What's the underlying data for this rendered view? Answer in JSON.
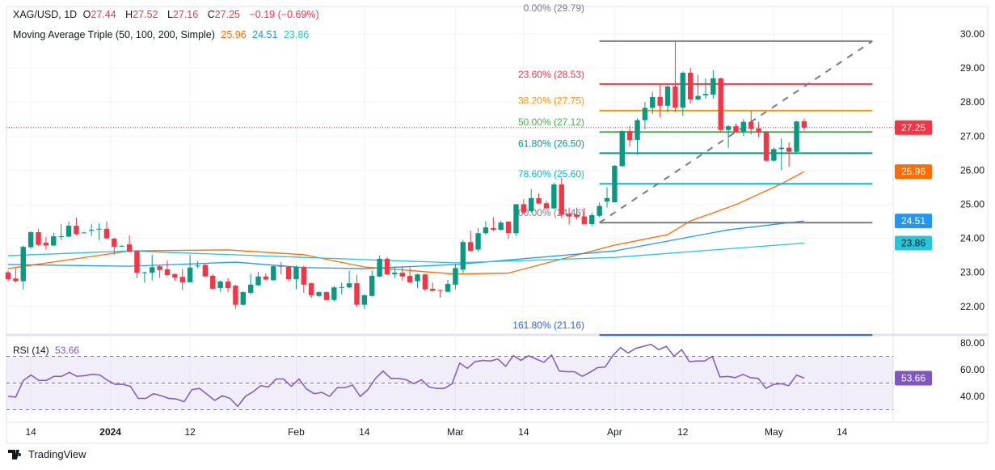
{
  "header": {
    "symbol": "XAG/USD, 1D",
    "open_label": "O",
    "open": "27.44",
    "high_label": "H",
    "high": "27.52",
    "low_label": "L",
    "low": "27.16",
    "close_label": "C",
    "close": "27.25",
    "change": "−0.19 (−0.69%)",
    "ma_title": "Moving Average Triple (50, 100, 200, Simple)",
    "ma50": "25.96",
    "ma100": "24.51",
    "ma200": "23.86"
  },
  "rsi_header": {
    "title": "RSI (14)",
    "value": "53.66"
  },
  "brand": {
    "name": "TradingView"
  },
  "colors": {
    "up": "#089981",
    "down": "#f23645",
    "ma50": "#ff6d00",
    "ma100": "#2196f3",
    "ma200": "#26c6da",
    "rsi": "#7e57c2"
  },
  "chart_data": [
    {
      "type": "candlestick",
      "title": "XAG/USD, 1D",
      "ylim": [
        21,
        30.3
      ],
      "y_ticks": [
        "22.00",
        "23.00",
        "24.00",
        "25.00",
        "26.00",
        "27.00",
        "28.00",
        "29.00",
        "30.00"
      ],
      "x_ticks": [
        {
          "label": "14",
          "index": 3
        },
        {
          "label": "2024",
          "index": 13.5
        },
        {
          "label": "12",
          "index": 24
        },
        {
          "label": "Feb",
          "index": 38
        },
        {
          "label": "14",
          "index": 47
        },
        {
          "label": "Mar",
          "index": 59
        },
        {
          "label": "14",
          "index": 68
        },
        {
          "label": "Apr",
          "index": 80
        },
        {
          "label": "12",
          "index": 89
        },
        {
          "label": "May",
          "index": 101
        },
        {
          "label": "14",
          "index": 110
        }
      ],
      "ohlc": [
        [
          23.0,
          23.05,
          22.75,
          22.8
        ],
        [
          22.82,
          23.12,
          22.7,
          22.74
        ],
        [
          22.74,
          23.79,
          22.5,
          23.75
        ],
        [
          23.74,
          24.2,
          23.7,
          24.18
        ],
        [
          24.18,
          24.28,
          23.77,
          23.81
        ],
        [
          23.87,
          24.04,
          23.67,
          23.79
        ],
        [
          23.79,
          24.16,
          23.77,
          24.06
        ],
        [
          24.05,
          24.42,
          23.95,
          24.06
        ],
        [
          24.05,
          24.49,
          24.03,
          24.37
        ],
        [
          24.37,
          24.61,
          24.09,
          24.12
        ],
        [
          24.17,
          24.19,
          24.15,
          24.17
        ],
        [
          24.22,
          24.42,
          24.07,
          24.25
        ],
        [
          24.26,
          24.44,
          23.95,
          24.28
        ],
        [
          24.28,
          24.49,
          23.98,
          24.0
        ],
        [
          23.99,
          24.02,
          23.52,
          23.75
        ],
        [
          23.77,
          23.8,
          23.75,
          23.78
        ],
        [
          23.82,
          24.09,
          23.6,
          23.61
        ],
        [
          23.63,
          23.65,
          22.83,
          22.99
        ],
        [
          23.0,
          23.02,
          22.7,
          23.0
        ],
        [
          22.99,
          23.52,
          22.76,
          23.15
        ],
        [
          23.18,
          23.2,
          22.84,
          23.07
        ],
        [
          23.09,
          23.35,
          22.9,
          22.92
        ],
        [
          22.95,
          22.97,
          22.75,
          22.85
        ],
        [
          22.87,
          23.1,
          22.48,
          22.71
        ],
        [
          22.71,
          23.52,
          22.7,
          23.14
        ],
        [
          23.19,
          23.33,
          23.12,
          23.2
        ],
        [
          23.22,
          23.25,
          22.86,
          22.88
        ],
        [
          22.9,
          22.95,
          22.5,
          22.52
        ],
        [
          22.54,
          22.76,
          22.43,
          22.73
        ],
        [
          22.73,
          22.83,
          22.42,
          22.54
        ],
        [
          22.61,
          22.63,
          21.93,
          22.05
        ],
        [
          22.05,
          22.45,
          22.03,
          22.42
        ],
        [
          22.4,
          22.95,
          22.35,
          22.64
        ],
        [
          22.62,
          23.02,
          22.6,
          22.88
        ],
        [
          22.88,
          22.97,
          22.76,
          22.79
        ],
        [
          22.77,
          23.2,
          22.75,
          23.18
        ],
        [
          23.19,
          23.3,
          22.94,
          23.17
        ],
        [
          23.16,
          23.18,
          22.75,
          22.8
        ],
        [
          22.8,
          23.2,
          22.5,
          23.16
        ],
        [
          23.16,
          23.2,
          22.4,
          22.64
        ],
        [
          22.68,
          22.7,
          22.25,
          22.33
        ],
        [
          22.31,
          22.44,
          22.28,
          22.42
        ],
        [
          22.42,
          22.44,
          22.17,
          22.19
        ],
        [
          22.19,
          22.6,
          22.14,
          22.56
        ],
        [
          22.56,
          22.7,
          22.35,
          22.57
        ],
        [
          22.56,
          23.05,
          22.54,
          22.68
        ],
        [
          22.68,
          22.92,
          21.98,
          22.05
        ],
        [
          22.05,
          22.35,
          21.93,
          22.33
        ],
        [
          22.31,
          23.05,
          22.29,
          22.9
        ],
        [
          22.88,
          23.5,
          22.85,
          23.4
        ],
        [
          23.4,
          23.45,
          22.92,
          22.94
        ],
        [
          22.94,
          23.17,
          22.84,
          22.99
        ],
        [
          22.99,
          23.15,
          22.76,
          22.88
        ],
        [
          22.9,
          23.15,
          22.68,
          22.71
        ],
        [
          22.74,
          22.96,
          22.54,
          22.94
        ],
        [
          22.94,
          22.96,
          22.44,
          22.5
        ],
        [
          22.52,
          22.7,
          22.44,
          22.46
        ],
        [
          22.48,
          22.5,
          22.27,
          22.46
        ],
        [
          22.43,
          22.78,
          22.41,
          22.66
        ],
        [
          22.64,
          23.25,
          22.5,
          23.13
        ],
        [
          23.08,
          23.95,
          22.98,
          23.89
        ],
        [
          23.89,
          24.23,
          23.6,
          23.63
        ],
        [
          23.67,
          24.3,
          23.6,
          24.15
        ],
        [
          24.15,
          24.5,
          24.1,
          24.32
        ],
        [
          24.3,
          24.62,
          24.2,
          24.25
        ],
        [
          24.25,
          24.52,
          24.22,
          24.46
        ],
        [
          24.49,
          24.5,
          23.98,
          24.15
        ],
        [
          24.15,
          25.0,
          24.07,
          25.0
        ],
        [
          25.0,
          25.15,
          24.72,
          24.76
        ],
        [
          24.8,
          25.44,
          24.75,
          25.18
        ],
        [
          25.18,
          25.32,
          25.0,
          25.02
        ],
        [
          25.03,
          25.1,
          24.85,
          24.88
        ],
        [
          24.88,
          25.63,
          24.85,
          25.58
        ],
        [
          25.58,
          25.77,
          24.6,
          24.7
        ],
        [
          24.72,
          24.9,
          24.4,
          24.64
        ],
        [
          24.7,
          24.9,
          24.55,
          24.62
        ],
        [
          24.64,
          24.9,
          24.4,
          24.42
        ],
        [
          24.42,
          24.75,
          24.35,
          24.68
        ],
        [
          24.66,
          25.05,
          24.62,
          24.95
        ],
        [
          25.08,
          25.5,
          24.9,
          25.18
        ],
        [
          25.06,
          26.15,
          25.05,
          26.13
        ],
        [
          26.12,
          27.17,
          26.1,
          27.15
        ],
        [
          27.15,
          27.3,
          26.7,
          26.89
        ],
        [
          26.89,
          27.52,
          26.45,
          27.47
        ],
        [
          27.47,
          28.0,
          27.2,
          27.83
        ],
        [
          27.83,
          28.3,
          27.65,
          28.15
        ],
        [
          28.15,
          28.5,
          27.55,
          27.89
        ],
        [
          27.89,
          28.5,
          27.7,
          28.46
        ],
        [
          28.46,
          29.79,
          27.7,
          27.84
        ],
        [
          27.84,
          28.9,
          27.6,
          28.86
        ],
        [
          28.86,
          29.0,
          27.95,
          28.08
        ],
        [
          28.08,
          28.8,
          28.05,
          28.18
        ],
        [
          28.2,
          28.7,
          28.1,
          28.24
        ],
        [
          28.22,
          28.94,
          28.1,
          28.7
        ],
        [
          28.7,
          28.72,
          27.1,
          27.18
        ],
        [
          27.18,
          27.32,
          26.65,
          27.29
        ],
        [
          27.29,
          27.37,
          27.1,
          27.13
        ],
        [
          27.13,
          27.5,
          27.0,
          27.42
        ],
        [
          27.42,
          27.75,
          27.05,
          27.21
        ],
        [
          27.23,
          27.42,
          26.98,
          27.12
        ],
        [
          27.12,
          27.15,
          26.25,
          26.28
        ],
        [
          26.28,
          26.66,
          26.25,
          26.62
        ],
        [
          26.62,
          26.93,
          26.0,
          26.66
        ],
        [
          26.66,
          26.82,
          26.1,
          26.54
        ],
        [
          26.54,
          27.45,
          26.5,
          27.43
        ],
        [
          27.44,
          27.52,
          27.16,
          27.25
        ]
      ],
      "last_price": {
        "value": 27.25,
        "label": "27.25",
        "color": "#f23645"
      },
      "moving_averages": [
        {
          "name": "MA50",
          "color": "#ff6d00",
          "last": "25.96",
          "points": [
            [
              0,
              23.11
            ],
            [
              16,
              23.63
            ],
            [
              29,
              23.66
            ],
            [
              39,
              23.52
            ],
            [
              47,
              23.16
            ],
            [
              59,
              22.95
            ],
            [
              66,
              22.98
            ],
            [
              80,
              23.8
            ],
            [
              87,
              24.11
            ],
            [
              90,
              24.51
            ],
            [
              96,
              24.99
            ],
            [
              102,
              25.6
            ],
            [
              105,
              25.96
            ]
          ]
        },
        {
          "name": "MA100",
          "color": "#2196f3",
          "last": "24.51",
          "points": [
            [
              0,
              23.23
            ],
            [
              16,
              23.18
            ],
            [
              30,
              23.3
            ],
            [
              39,
              23.14
            ],
            [
              47,
              23.11
            ],
            [
              59,
              23.23
            ],
            [
              80,
              23.63
            ],
            [
              95,
              24.25
            ],
            [
              105,
              24.51
            ]
          ]
        },
        {
          "name": "MA200",
          "color": "#26c6da",
          "last": "23.86",
          "points": [
            [
              0,
              23.49
            ],
            [
              16,
              23.63
            ],
            [
              39,
              23.44
            ],
            [
              59,
              23.28
            ],
            [
              80,
              23.44
            ],
            [
              105,
              23.86
            ]
          ]
        }
      ],
      "fibonacci": {
        "start_index": 78,
        "end_index": 114,
        "trend_from": [
          78,
          24.46
        ],
        "trend_to": [
          114,
          29.79
        ],
        "levels": [
          {
            "label": "0.00% (29.79)",
            "value": 29.79,
            "color": "#787b86"
          },
          {
            "label": "23.60% (28.53)",
            "value": 28.53,
            "color": "#f23645"
          },
          {
            "label": "38.20% (27.75)",
            "value": 27.75,
            "color": "#ff9800"
          },
          {
            "label": "50.00% (27.12)",
            "value": 27.12,
            "color": "#4caf50"
          },
          {
            "label": "61.80% (26.50)",
            "value": 26.5,
            "color": "#089981"
          },
          {
            "label": "78.60% (25.60)",
            "value": 25.6,
            "color": "#00bcd4"
          },
          {
            "label": "100.00% (24.46)",
            "value": 24.46,
            "color": "#787b86"
          },
          {
            "label": "161.80% (21.16)",
            "value": 21.16,
            "color": "#2962ff"
          }
        ]
      }
    },
    {
      "type": "line",
      "title": "RSI (14)",
      "ylim": [
        25,
        82
      ],
      "y_ticks": [
        "40.00",
        "60.00",
        "80.00"
      ],
      "bands": [
        30,
        50,
        70
      ],
      "last": "53.66",
      "values": [
        40,
        39.5,
        52,
        56,
        52,
        52,
        55,
        55,
        58,
        55,
        55.5,
        56.5,
        56,
        52,
        49,
        49,
        47.5,
        38.5,
        38.5,
        42,
        40.5,
        38.5,
        38,
        36,
        45,
        46,
        41.5,
        37,
        40.5,
        38.5,
        32.5,
        40,
        43.5,
        48,
        47,
        53,
        53,
        47.5,
        53,
        45.5,
        42,
        43,
        40,
        46.5,
        46.5,
        48.5,
        40,
        45,
        53.5,
        59,
        53.5,
        53.5,
        52.5,
        49.5,
        52.5,
        47,
        46,
        46,
        49.5,
        65,
        61,
        66,
        67,
        66.5,
        68,
        62.5,
        70.5,
        67,
        70.5,
        68,
        65.5,
        71,
        59,
        58.5,
        58.5,
        55,
        58,
        61.5,
        62,
        70.5,
        76.5,
        72.5,
        76,
        77.5,
        79,
        75,
        77.5,
        70,
        75,
        66,
        66.5,
        66.5,
        70,
        54.5,
        55,
        54,
        56.5,
        54,
        53.5,
        46,
        49,
        49.5,
        48,
        56,
        53.66
      ]
    }
  ]
}
